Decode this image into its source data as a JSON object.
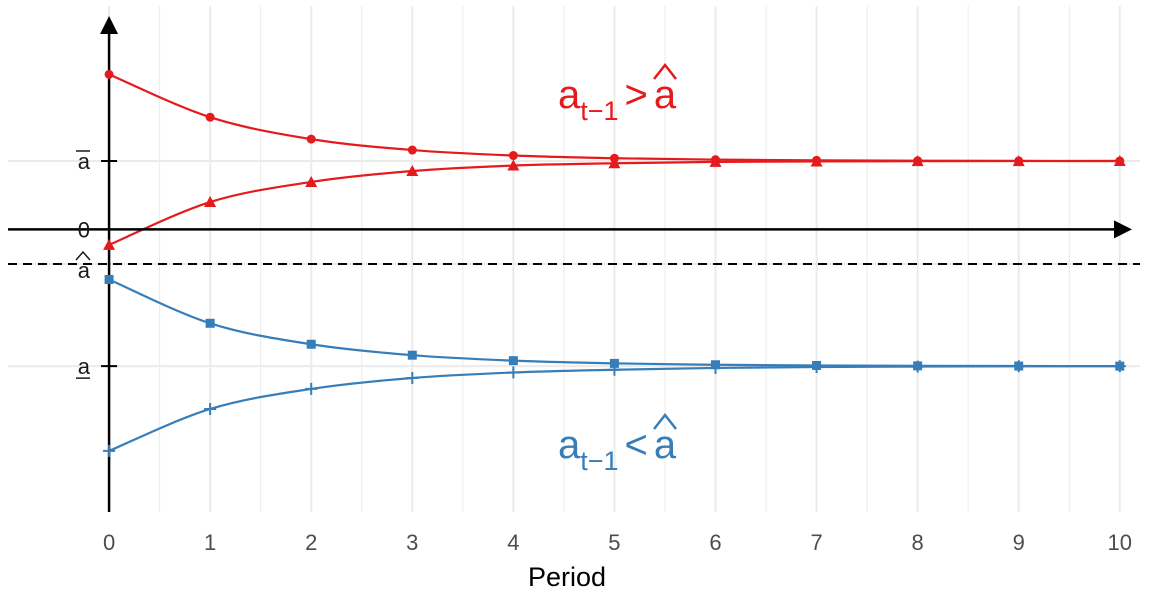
{
  "chart_data": {
    "type": "line",
    "xlabel": "Period",
    "ylabel": "",
    "x": [
      0,
      1,
      2,
      3,
      4,
      5,
      6,
      7,
      8,
      9,
      10
    ],
    "x_ticks": [
      "0",
      "1",
      "2",
      "3",
      "4",
      "5",
      "6",
      "7",
      "8",
      "9",
      "10"
    ],
    "xlim": [
      -1.0,
      10.2
    ],
    "ylim": [
      -3.1,
      2.45
    ],
    "grid": true,
    "y_ticks": [
      {
        "value": 0.75,
        "label": "a",
        "mark": "overline"
      },
      {
        "value": 0,
        "label": "0",
        "mark": "none"
      },
      {
        "value": -0.38,
        "label": "a",
        "mark": "hat"
      },
      {
        "value": -1.5,
        "label": "a",
        "mark": "underline"
      }
    ],
    "reference_line": {
      "value": -0.38,
      "style": "dashed"
    },
    "colors": {
      "red": "#e41a1c",
      "blue": "#377eb8",
      "axis": "#000000",
      "grid": "#ebebeb"
    },
    "series": [
      {
        "color": "#e41a1c",
        "marker": "circle",
        "values": [
          1.7,
          1.23,
          0.99,
          0.87,
          0.81,
          0.78,
          0.765,
          0.757,
          0.753,
          0.751,
          0.75
        ]
      },
      {
        "color": "#e41a1c",
        "marker": "triangle",
        "values": [
          -0.17,
          0.3,
          0.52,
          0.64,
          0.7,
          0.725,
          0.74,
          0.745,
          0.748,
          0.749,
          0.75
        ]
      },
      {
        "color": "#377eb8",
        "marker": "square",
        "values": [
          -0.55,
          -1.03,
          -1.26,
          -1.38,
          -1.44,
          -1.47,
          -1.485,
          -1.493,
          -1.497,
          -1.499,
          -1.5
        ]
      },
      {
        "color": "#377eb8",
        "marker": "plus",
        "values": [
          -2.43,
          -1.97,
          -1.75,
          -1.63,
          -1.57,
          -1.54,
          -1.52,
          -1.51,
          -1.505,
          -1.502,
          -1.5
        ]
      }
    ],
    "annotations": [
      {
        "main": "a",
        "sub": "t−1",
        "op": ">",
        "rhs": "a",
        "rhs_mark": "hat",
        "color": "#e41a1c"
      },
      {
        "main": "a",
        "sub": "t−1",
        "op": "<",
        "rhs": "a",
        "rhs_mark": "hat",
        "color": "#377eb8"
      }
    ]
  }
}
